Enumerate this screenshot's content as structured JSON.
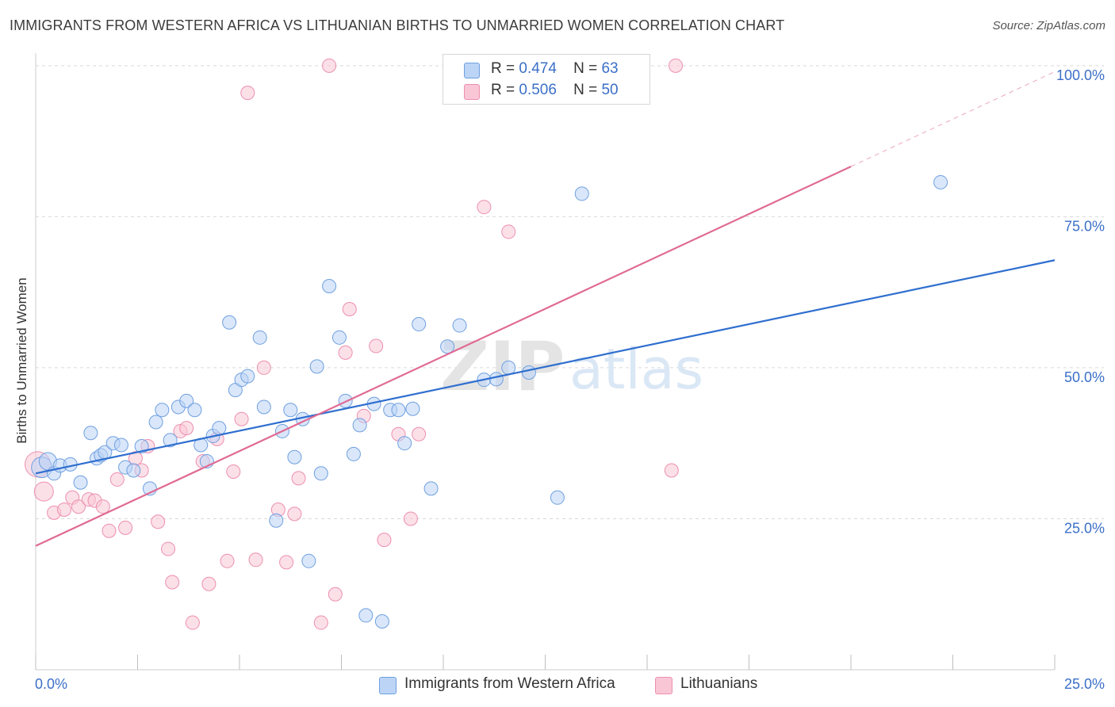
{
  "title": "IMMIGRANTS FROM WESTERN AFRICA VS LITHUANIAN BIRTHS TO UNMARRIED WOMEN CORRELATION CHART",
  "source": "Source: ZipAtlas.com",
  "watermark": {
    "zip": "ZIP",
    "atlas": "atlas"
  },
  "legend": {
    "r_label": "R =",
    "n_label": "N =",
    "rows": [
      {
        "r": "0.474",
        "n": "63"
      },
      {
        "r": "0.506",
        "n": "50"
      }
    ]
  },
  "bottom_legend": [
    "Immigrants from Western Africa",
    "Lithuanians"
  ],
  "chart_data": {
    "type": "scatter",
    "title": "IMMIGRANTS FROM WESTERN AFRICA VS LITHUANIAN BIRTHS TO UNMARRIED WOMEN CORRELATION CHART",
    "xlabel": "",
    "ylabel": "Births to Unmarried Women",
    "xlim": [
      0,
      25
    ],
    "ylim": [
      0,
      102
    ],
    "x_tick_labels": [
      "0.0%",
      "25.0%"
    ],
    "y_tick_labels": [
      "25.0%",
      "50.0%",
      "75.0%",
      "100.0%"
    ],
    "y_ticks": [
      25,
      50,
      75,
      100
    ],
    "grid": true,
    "legend_position": "top-center",
    "colors": {
      "blue": "#6fa0e0",
      "blue_fill": "#bcd4f5",
      "blue_line": "#2f6fcf",
      "pink": "#ec8fb0",
      "pink_fill": "#f9c6d6",
      "pink_line": "#e06a94",
      "axis_text": "#3b6fc7"
    },
    "series": [
      {
        "name": "Immigrants from Western Africa",
        "r": 0.474,
        "n": 63,
        "trend": {
          "x": [
            0,
            25
          ],
          "y": [
            32.5,
            67.8
          ]
        },
        "points": [
          [
            0.15,
            33.5
          ],
          [
            0.3,
            34.5
          ],
          [
            0.45,
            32.5
          ],
          [
            0.6,
            33.8
          ],
          [
            0.85,
            34
          ],
          [
            1.1,
            31
          ],
          [
            1.35,
            39.2
          ],
          [
            1.5,
            35
          ],
          [
            1.6,
            35.5
          ],
          [
            1.7,
            36
          ],
          [
            1.9,
            37.5
          ],
          [
            2.1,
            37.2
          ],
          [
            2.2,
            33.5
          ],
          [
            2.4,
            33
          ],
          [
            2.6,
            37
          ],
          [
            2.8,
            30
          ],
          [
            2.95,
            41
          ],
          [
            3.1,
            43
          ],
          [
            3.3,
            38
          ],
          [
            3.5,
            43.5
          ],
          [
            3.7,
            44.5
          ],
          [
            3.9,
            43
          ],
          [
            4.05,
            37.2
          ],
          [
            4.2,
            34.5
          ],
          [
            4.35,
            38.7
          ],
          [
            4.5,
            40
          ],
          [
            4.75,
            57.5
          ],
          [
            4.9,
            46.3
          ],
          [
            5.05,
            48
          ],
          [
            5.2,
            48.6
          ],
          [
            5.5,
            55
          ],
          [
            5.6,
            43.5
          ],
          [
            5.9,
            24.7
          ],
          [
            6.05,
            39.5
          ],
          [
            6.25,
            43
          ],
          [
            6.35,
            35.2
          ],
          [
            6.55,
            41.5
          ],
          [
            6.7,
            18
          ],
          [
            6.9,
            50.2
          ],
          [
            7.0,
            32.5
          ],
          [
            7.2,
            63.5
          ],
          [
            7.45,
            55
          ],
          [
            7.6,
            44.5
          ],
          [
            7.8,
            35.7
          ],
          [
            7.95,
            40.5
          ],
          [
            8.1,
            9
          ],
          [
            8.3,
            44
          ],
          [
            8.5,
            8
          ],
          [
            8.7,
            43
          ],
          [
            8.9,
            43
          ],
          [
            9.05,
            37.5
          ],
          [
            9.25,
            43.2
          ],
          [
            9.4,
            57.2
          ],
          [
            9.7,
            30
          ],
          [
            10.1,
            53.5
          ],
          [
            10.4,
            57
          ],
          [
            11.0,
            48
          ],
          [
            11.3,
            48.1
          ],
          [
            11.6,
            50
          ],
          [
            12.1,
            49.2
          ],
          [
            12.8,
            28.5
          ],
          [
            13.4,
            78.8
          ],
          [
            22.2,
            80.7
          ]
        ]
      },
      {
        "name": "Lithuanians",
        "r": 0.506,
        "n": 50,
        "trend": {
          "x": [
            0,
            20
          ],
          "y": [
            20.5,
            83.3
          ]
        },
        "trend_dashed": {
          "x": [
            20,
            25
          ],
          "y": [
            83.3,
            99
          ]
        },
        "points": [
          [
            0.05,
            34
          ],
          [
            0.2,
            29.5
          ],
          [
            0.45,
            26
          ],
          [
            0.7,
            26.5
          ],
          [
            0.9,
            28.5
          ],
          [
            1.05,
            27
          ],
          [
            1.3,
            28.2
          ],
          [
            1.45,
            28
          ],
          [
            1.65,
            27
          ],
          [
            1.8,
            23
          ],
          [
            2.0,
            31.5
          ],
          [
            2.2,
            23.5
          ],
          [
            2.45,
            35
          ],
          [
            2.6,
            33
          ],
          [
            2.75,
            37
          ],
          [
            3.0,
            24.5
          ],
          [
            3.25,
            20
          ],
          [
            3.35,
            14.5
          ],
          [
            3.55,
            39.5
          ],
          [
            3.7,
            40
          ],
          [
            3.85,
            7.8
          ],
          [
            4.1,
            34.5
          ],
          [
            4.25,
            14.2
          ],
          [
            4.45,
            38.2
          ],
          [
            4.7,
            18
          ],
          [
            4.85,
            32.8
          ],
          [
            5.05,
            41.5
          ],
          [
            5.2,
            95.5
          ],
          [
            5.4,
            18.2
          ],
          [
            5.6,
            50
          ],
          [
            5.95,
            26.5
          ],
          [
            6.15,
            17.8
          ],
          [
            6.35,
            25.8
          ],
          [
            6.45,
            31.7
          ],
          [
            7.0,
            7.8
          ],
          [
            7.35,
            12.5
          ],
          [
            7.2,
            100
          ],
          [
            7.6,
            52.5
          ],
          [
            7.7,
            59.7
          ],
          [
            8.05,
            42
          ],
          [
            8.35,
            53.6
          ],
          [
            8.55,
            21.5
          ],
          [
            8.9,
            39
          ],
          [
            9.2,
            25
          ],
          [
            9.4,
            39
          ],
          [
            11.0,
            76.6
          ],
          [
            11.6,
            72.5
          ],
          [
            11.7,
            100.5
          ],
          [
            15.6,
            33
          ],
          [
            15.7,
            100
          ]
        ]
      }
    ]
  }
}
